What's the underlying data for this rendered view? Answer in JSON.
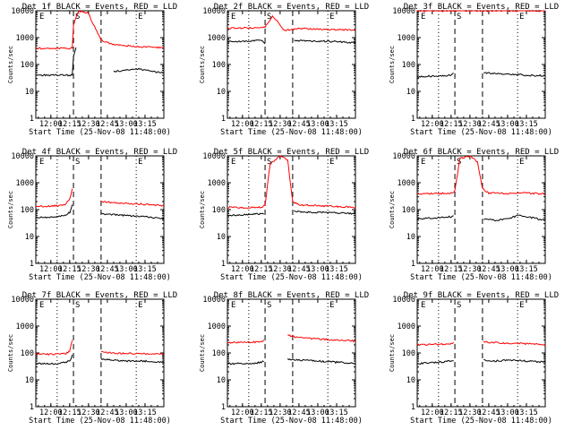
{
  "chart_data": {
    "type": "line",
    "xticks": [
      "12:00",
      "12:15",
      "12:30",
      "12:45",
      "13:00",
      "13:15"
    ],
    "yticks": [
      "1",
      "10",
      "100",
      "1000",
      "10000"
    ],
    "ylabel": "Counts/sec",
    "xlabel": "Start Time (25-Nov-08 11:48:00)",
    "marker_labels": [
      "E",
      "S",
      "E"
    ],
    "colors": {
      "events": "#000000",
      "lld": "#ff0000"
    },
    "ylog": true,
    "panels": [
      {
        "title": "Det 1f BLACK = Events, RED = LLD",
        "series": [
          {
            "name": "Events",
            "color": "#000000",
            "x": [
              "11:48",
              "12:05",
              "12:12",
              "12:17",
              "12:18",
              "12:20",
              "12:40",
              "12:42",
              "12:50",
              "13:00",
              "13:10",
              "13:20",
              "13:30"
            ],
            "values": [
              40,
              40,
              40,
              40,
              200,
              400,
              null,
              null,
              55,
              60,
              70,
              55,
              50
            ]
          },
          {
            "name": "LLD",
            "color": "#ff0000",
            "x": [
              "11:48",
              "12:05",
              "12:15",
              "12:17",
              "12:18",
              "12:22",
              "12:30",
              "12:34",
              "12:40",
              "12:50",
              "13:00",
              "13:15",
              "13:30"
            ],
            "values": [
              400,
              400,
              400,
              420,
              3000,
              10000,
              8000,
              3000,
              800,
              550,
              500,
              450,
              420
            ]
          }
        ]
      },
      {
        "title": "Det 2f BLACK = Events, RED = LLD",
        "series": [
          {
            "name": "Events",
            "color": "#000000",
            "x": [
              "11:48",
              "12:05",
              "12:15",
              "12:18",
              "12:19",
              "12:40",
              "12:41",
              "12:50",
              "13:00",
              "13:15",
              "13:30"
            ],
            "values": [
              700,
              750,
              800,
              600,
              null,
              null,
              800,
              750,
              750,
              700,
              650
            ]
          },
          {
            "name": "LLD",
            "color": "#ff0000",
            "x": [
              "11:48",
              "12:05",
              "12:15",
              "12:18",
              "12:24",
              "12:28",
              "12:33",
              "12:38",
              "12:45",
              "13:00",
              "13:15",
              "13:30"
            ],
            "values": [
              2200,
              2300,
              2400,
              2500,
              6000,
              4000,
              1800,
              2000,
              2200,
              2100,
              2000,
              1900
            ]
          }
        ]
      },
      {
        "title": "Det 3f BLACK = Events, RED = LLD",
        "series": [
          {
            "name": "Events",
            "color": "#000000",
            "x": [
              "11:48",
              "12:05",
              "12:15",
              "12:17",
              "12:18",
              "12:40",
              "12:41",
              "12:50",
              "13:00",
              "13:15",
              "13:30"
            ],
            "values": [
              35,
              38,
              40,
              45,
              null,
              null,
              50,
              45,
              45,
              40,
              38
            ]
          },
          {
            "name": "LLD",
            "color": "#ff0000",
            "x": [
              "11:48",
              "12:05",
              "12:15",
              "12:18",
              "12:40",
              "12:45",
              "13:00",
              "13:15",
              "13:30"
            ],
            "values": [
              10000,
              10000,
              10000,
              10000,
              10000,
              10000,
              10000,
              10000,
              10000
            ]
          }
        ]
      },
      {
        "title": "Det 4f BLACK = Events, RED = LLD",
        "series": [
          {
            "name": "Events",
            "color": "#000000",
            "x": [
              "11:48",
              "12:05",
              "12:12",
              "12:15",
              "12:17",
              "12:18",
              "12:38",
              "12:40",
              "12:50",
              "13:00",
              "13:15",
              "13:30"
            ],
            "values": [
              50,
              55,
              60,
              80,
              150,
              null,
              null,
              70,
              65,
              60,
              55,
              45
            ]
          },
          {
            "name": "LLD",
            "color": "#ff0000",
            "x": [
              "11:48",
              "12:05",
              "12:12",
              "12:15",
              "12:17",
              "12:18",
              "12:37",
              "12:40",
              "12:50",
              "13:00",
              "13:15",
              "13:30"
            ],
            "values": [
              130,
              140,
              160,
              250,
              600,
              null,
              null,
              200,
              180,
              170,
              160,
              140
            ]
          }
        ]
      },
      {
        "title": "Det 5f BLACK = Events, RED = LLD",
        "series": [
          {
            "name": "Events",
            "color": "#000000",
            "x": [
              "11:48",
              "12:05",
              "12:15",
              "12:17",
              "12:18",
              "12:40",
              "12:41",
              "12:50",
              "13:00",
              "13:15",
              "13:30"
            ],
            "values": [
              60,
              65,
              70,
              70,
              null,
              null,
              90,
              80,
              80,
              75,
              70
            ]
          },
          {
            "name": "LLD",
            "color": "#ff0000",
            "x": [
              "11:48",
              "12:05",
              "12:15",
              "12:18",
              "12:22",
              "12:30",
              "12:36",
              "12:40",
              "12:45",
              "13:00",
              "13:15",
              "13:30"
            ],
            "values": [
              120,
              120,
              120,
              150,
              5000,
              10000,
              7000,
              200,
              150,
              140,
              130,
              120
            ]
          }
        ]
      },
      {
        "title": "Det 6f BLACK = Events, RED = LLD",
        "series": [
          {
            "name": "Events",
            "color": "#000000",
            "x": [
              "11:48",
              "12:05",
              "12:15",
              "12:17",
              "12:18",
              "12:40",
              "12:41",
              "12:50",
              "13:00",
              "13:08",
              "13:15",
              "13:30"
            ],
            "values": [
              45,
              50,
              55,
              60,
              null,
              null,
              45,
              40,
              45,
              60,
              55,
              40
            ]
          },
          {
            "name": "LLD",
            "color": "#ff0000",
            "x": [
              "11:48",
              "12:05",
              "12:15",
              "12:18",
              "12:22",
              "12:30",
              "12:36",
              "12:40",
              "12:45",
              "13:00",
              "13:15",
              "13:30"
            ],
            "values": [
              380,
              400,
              420,
              500,
              8000,
              10000,
              6000,
              600,
              420,
              400,
              420,
              380
            ]
          }
        ]
      },
      {
        "title": "Det 7f BLACK = Events, RED = LLD",
        "series": [
          {
            "name": "Events",
            "color": "#000000",
            "x": [
              "11:48",
              "12:05",
              "12:12",
              "12:15",
              "12:17",
              "12:18",
              "12:38",
              "12:40",
              "12:50",
              "13:00",
              "13:15",
              "13:30"
            ],
            "values": [
              40,
              40,
              45,
              50,
              80,
              null,
              null,
              60,
              55,
              50,
              50,
              45
            ]
          },
          {
            "name": "LLD",
            "color": "#ff0000",
            "x": [
              "11:48",
              "12:05",
              "12:12",
              "12:15",
              "12:17",
              "12:18",
              "12:37",
              "12:40",
              "12:50",
              "13:00",
              "13:15",
              "13:30"
            ],
            "values": [
              90,
              90,
              95,
              120,
              300,
              null,
              null,
              110,
              100,
              95,
              95,
              90
            ]
          }
        ]
      },
      {
        "title": "Det 8f BLACK = Events, RED = LLD",
        "series": [
          {
            "name": "Events",
            "color": "#000000",
            "x": [
              "11:48",
              "12:05",
              "12:15",
              "12:17",
              "12:18",
              "12:35",
              "12:36",
              "12:45",
              "13:00",
              "13:15",
              "13:30"
            ],
            "values": [
              40,
              40,
              45,
              50,
              null,
              null,
              60,
              55,
              50,
              45,
              40
            ]
          },
          {
            "name": "LLD",
            "color": "#ff0000",
            "x": [
              "11:48",
              "12:05",
              "12:15",
              "12:17",
              "12:18",
              "12:35",
              "12:36",
              "12:45",
              "13:00",
              "13:15",
              "13:30"
            ],
            "values": [
              240,
              250,
              260,
              300,
              null,
              null,
              450,
              380,
              330,
              300,
              280
            ]
          }
        ]
      },
      {
        "title": "Det 9f BLACK = Events, RED = LLD",
        "series": [
          {
            "name": "Events",
            "color": "#000000",
            "x": [
              "11:48",
              "12:05",
              "12:15",
              "12:17",
              "12:18",
              "12:40",
              "12:41",
              "12:50",
              "13:00",
              "13:15",
              "13:30"
            ],
            "values": [
              40,
              45,
              50,
              55,
              null,
              null,
              55,
              50,
              55,
              50,
              45
            ]
          },
          {
            "name": "LLD",
            "color": "#ff0000",
            "x": [
              "11:48",
              "12:05",
              "12:15",
              "12:17",
              "12:18",
              "12:40",
              "12:41",
              "12:50",
              "13:00",
              "13:15",
              "13:30"
            ],
            "values": [
              200,
              210,
              220,
              250,
              null,
              null,
              260,
              240,
              230,
              220,
              210
            ]
          }
        ]
      }
    ]
  }
}
